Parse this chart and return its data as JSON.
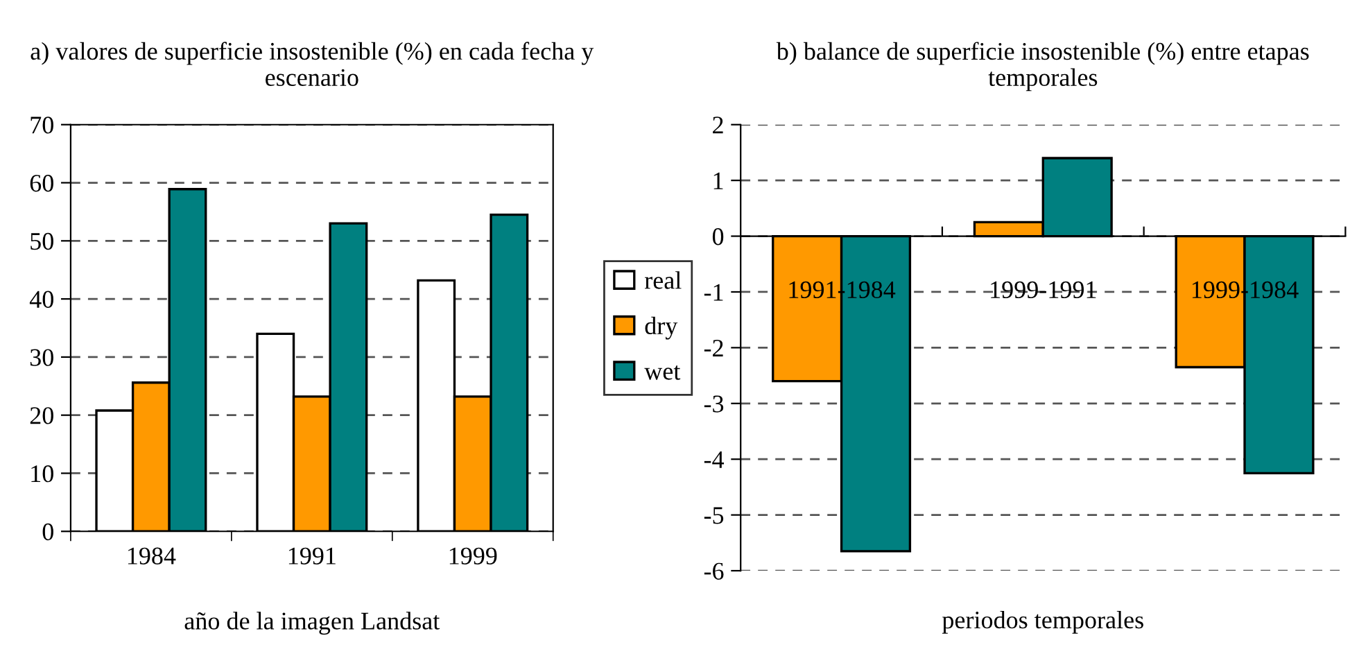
{
  "chart_data": [
    {
      "type": "bar",
      "title": "a) valores de superficie insostenible (%) en cada fecha y escenario",
      "xlabel": "año de la imagen Landsat",
      "categories": [
        "1984",
        "1991",
        "1999"
      ],
      "series": [
        {
          "name": "real",
          "color": "#ffffff",
          "values": [
            20.8,
            34,
            43.2
          ]
        },
        {
          "name": "dry",
          "color": "#ff9900",
          "values": [
            25.6,
            23.2,
            23.2
          ]
        },
        {
          "name": "wet",
          "color": "#008080",
          "values": [
            58.9,
            53,
            54.5
          ]
        }
      ],
      "ylim": [
        0,
        70
      ],
      "yticks": [
        0,
        10,
        20,
        30,
        40,
        50,
        60,
        70
      ],
      "grid": "y",
      "legend": "right"
    },
    {
      "type": "bar",
      "title": "b) balance de superficie insostenible (%) entre etapas temporales",
      "xlabel": "periodos temporales",
      "categories": [
        "1991-1984",
        "1999-1991",
        "1999-1984"
      ],
      "series": [
        {
          "color": "#ff9900",
          "values": [
            -2.6,
            0.25,
            -2.35
          ]
        },
        {
          "color": "#008080",
          "values": [
            -5.65,
            1.4,
            -4.25
          ]
        }
      ],
      "ylim": [
        -6,
        2
      ],
      "yticks": [
        -6,
        -5,
        -4,
        -3,
        -2,
        -1,
        0,
        1,
        2
      ],
      "grid": "y"
    }
  ]
}
